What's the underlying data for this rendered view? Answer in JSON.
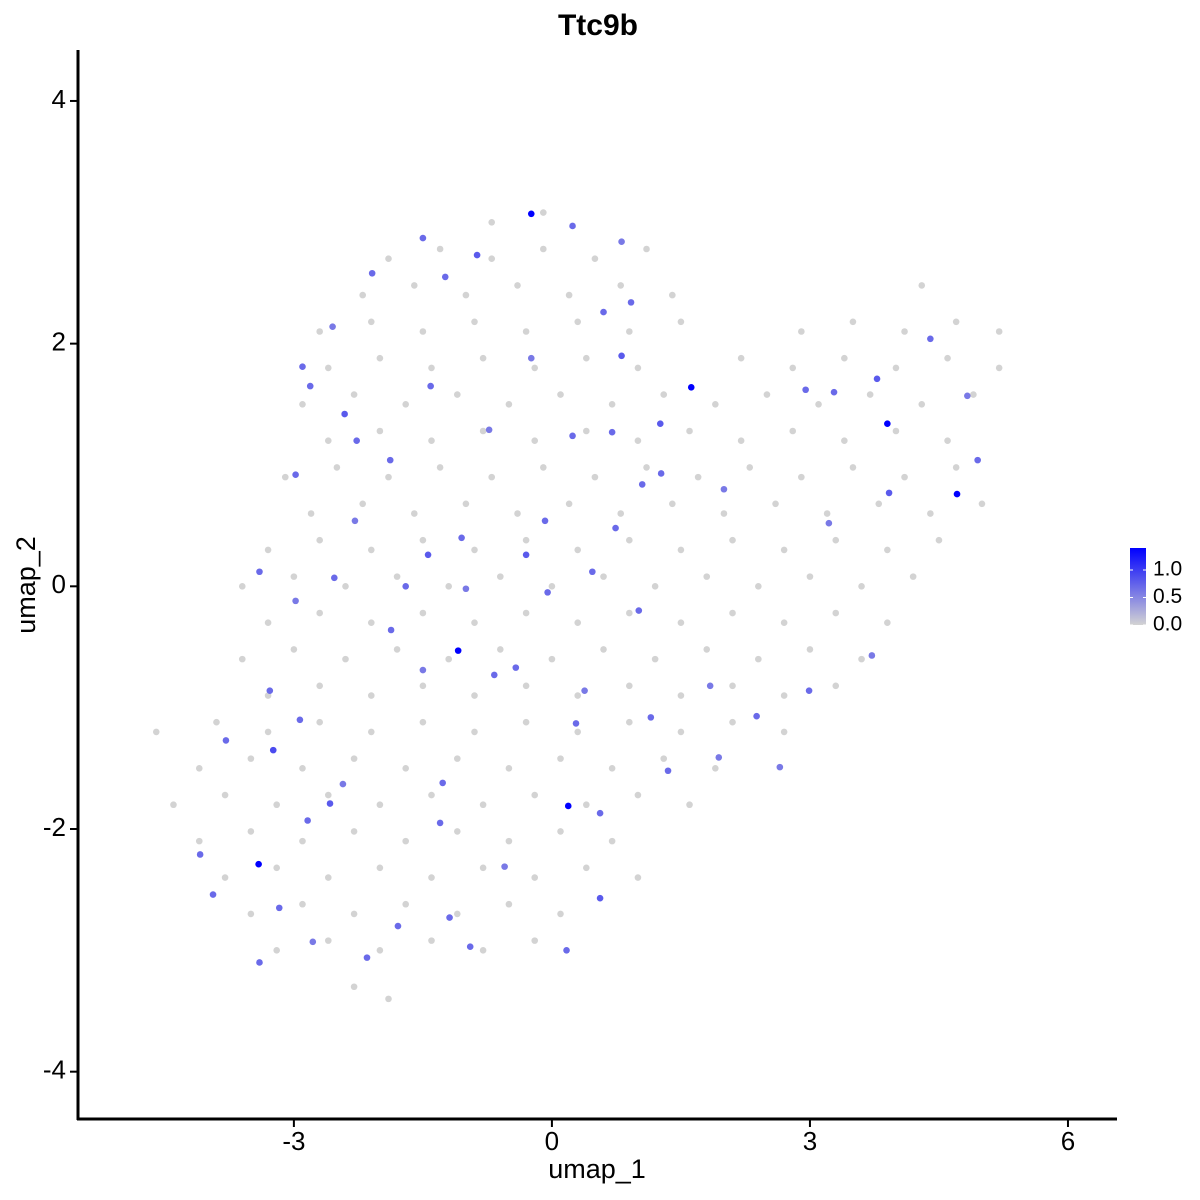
{
  "chart_data": {
    "type": "scatter",
    "title": "Ttc9b",
    "x_label": "umap_1",
    "y_label": "umap_2",
    "xlim": [
      -5.51,
      6.57
    ],
    "ylim": [
      -4.39,
      4.42
    ],
    "xticks": [
      -3,
      0,
      3,
      6
    ],
    "yticks": [
      -4,
      -2,
      0,
      2,
      4
    ],
    "colorbar": {
      "low": "#d3d3d3",
      "high": "#0000ff",
      "lim": [
        0,
        1.4
      ],
      "ticks": [
        {
          "value": 0,
          "label": "0.0"
        },
        {
          "value": 0.5,
          "label": "0.5"
        },
        {
          "value": 1,
          "label": "1.0"
        }
      ]
    },
    "x": [
      -0.7,
      -0.1,
      -1.9,
      -1.3,
      -0.7,
      -0.1,
      0.5,
      1.1,
      -2.2,
      -1.6,
      -1.0,
      -0.4,
      0.2,
      0.8,
      1.4,
      4.3,
      -2.7,
      -2.1,
      -1.5,
      -0.9,
      -0.3,
      0.3,
      0.9,
      1.5,
      2.9,
      3.5,
      4.1,
      4.7,
      5.2,
      -2.6,
      -2.0,
      -1.4,
      -0.8,
      -0.2,
      0.4,
      1.0,
      2.2,
      2.8,
      3.4,
      4.0,
      4.6,
      5.2,
      -2.9,
      -2.3,
      -1.7,
      -1.1,
      -0.5,
      0.1,
      0.7,
      1.3,
      1.9,
      2.5,
      3.1,
      3.7,
      4.3,
      4.9,
      -2.6,
      -2.0,
      -1.4,
      -0.8,
      -0.2,
      0.4,
      1.0,
      1.6,
      2.2,
      2.8,
      3.4,
      4.0,
      4.6,
      -3.1,
      -2.5,
      -1.9,
      -1.3,
      -0.7,
      -0.1,
      0.5,
      1.1,
      1.7,
      2.3,
      2.9,
      3.5,
      4.1,
      4.7,
      -2.8,
      -2.2,
      -1.6,
      -1.0,
      -0.4,
      0.2,
      0.8,
      1.4,
      2.0,
      2.6,
      3.2,
      3.8,
      4.4,
      5.0,
      -3.3,
      -2.7,
      -2.1,
      -1.5,
      -0.9,
      -0.3,
      0.3,
      0.9,
      1.5,
      2.1,
      2.7,
      3.3,
      3.9,
      4.5,
      -3.6,
      -3.0,
      -2.4,
      -1.8,
      -1.2,
      -0.6,
      0.0,
      0.6,
      1.2,
      1.8,
      2.4,
      3.0,
      3.6,
      4.2,
      -3.3,
      -2.7,
      -2.1,
      -1.5,
      -0.9,
      -0.3,
      0.3,
      0.9,
      1.5,
      2.1,
      2.7,
      3.3,
      3.9,
      -3.6,
      -3.0,
      -2.4,
      -1.8,
      -1.2,
      -0.6,
      0.0,
      0.6,
      1.2,
      1.8,
      2.4,
      3.0,
      3.6,
      -3.3,
      -2.7,
      -2.1,
      -1.5,
      -0.9,
      -0.3,
      0.3,
      0.9,
      1.5,
      2.1,
      2.7,
      3.3,
      -4.6,
      -3.9,
      -3.3,
      -2.7,
      -2.1,
      -1.5,
      -0.9,
      -0.3,
      0.3,
      0.9,
      1.5,
      2.1,
      2.7,
      -4.1,
      -3.5,
      -2.9,
      -2.3,
      -1.7,
      -1.1,
      -0.5,
      0.1,
      0.7,
      1.3,
      1.9,
      -4.4,
      -3.8,
      -3.2,
      -2.6,
      -2.0,
      -1.4,
      -0.8,
      -0.2,
      0.4,
      1.0,
      1.6,
      -4.1,
      -3.5,
      -2.9,
      -2.3,
      -1.7,
      -1.1,
      -0.5,
      0.1,
      0.7,
      -3.8,
      -3.2,
      -2.6,
      -2.0,
      -1.4,
      -0.8,
      -0.2,
      0.4,
      1.0,
      -3.5,
      -2.9,
      -2.3,
      -1.7,
      -1.1,
      -0.5,
      0.1,
      -3.2,
      -2.6,
      -2.0,
      -1.4,
      -0.8,
      -0.2,
      -2.3,
      -1.9,
      -0.24,
      1.62,
      3.9,
      4.71,
      -1.09,
      0.19,
      -3.41,
      -1.5,
      -0.87,
      0.24,
      0.81,
      0.92,
      0.6,
      0.81,
      -2.9,
      -2.55,
      -2.41,
      -1.88,
      -1.41,
      -0.24,
      0.24,
      0.7,
      1.26,
      1.27,
      2.0,
      2.95,
      3.28,
      3.78,
      4.4,
      4.83,
      4.95,
      3.92,
      3.22,
      0.74,
      -0.08,
      -0.3,
      -1.05,
      -1.0,
      1.01,
      -0.05,
      -1.44,
      -1.7,
      -2.98,
      -3.4,
      -3.28,
      -2.93,
      -3.24,
      -2.58,
      -2.84,
      -2.43,
      -4.09,
      -3.79,
      -3.94,
      -3.17,
      -3.4,
      -2.78,
      -2.15,
      -1.79,
      -1.19,
      -0.95,
      -0.55,
      0.17,
      0.56,
      0.56,
      0.38,
      0.28,
      -1.27,
      -1.3,
      -1.5,
      -0.42,
      -0.67,
      1.15,
      1.84,
      2.38,
      2.65,
      2.99,
      3.72,
      1.94,
      1.35,
      -1.87,
      -2.53,
      -2.27,
      -2.29,
      -2.98,
      -2.81,
      -2.09,
      -1.24,
      -0.73,
      1.05,
      0.47
    ],
    "y": [
      3.0,
      3.08,
      2.7,
      2.78,
      2.7,
      2.78,
      2.7,
      2.78,
      2.4,
      2.48,
      2.4,
      2.48,
      2.4,
      2.48,
      2.4,
      2.48,
      2.1,
      2.18,
      2.1,
      2.18,
      2.1,
      2.18,
      2.1,
      2.18,
      2.1,
      2.18,
      2.1,
      2.18,
      2.1,
      1.8,
      1.88,
      1.8,
      1.88,
      1.8,
      1.88,
      1.8,
      1.88,
      1.8,
      1.88,
      1.8,
      1.88,
      1.8,
      1.5,
      1.58,
      1.5,
      1.58,
      1.5,
      1.58,
      1.5,
      1.58,
      1.5,
      1.58,
      1.5,
      1.58,
      1.5,
      1.58,
      1.2,
      1.28,
      1.2,
      1.28,
      1.2,
      1.28,
      1.2,
      1.28,
      1.2,
      1.28,
      1.2,
      1.28,
      1.2,
      0.9,
      0.98,
      0.9,
      0.98,
      0.9,
      0.98,
      0.9,
      0.98,
      0.9,
      0.98,
      0.9,
      0.98,
      0.9,
      0.98,
      0.6,
      0.68,
      0.6,
      0.68,
      0.6,
      0.68,
      0.6,
      0.68,
      0.6,
      0.68,
      0.6,
      0.68,
      0.6,
      0.68,
      0.3,
      0.38,
      0.3,
      0.38,
      0.3,
      0.38,
      0.3,
      0.38,
      0.3,
      0.38,
      0.3,
      0.38,
      0.3,
      0.38,
      0.0,
      0.08,
      0.0,
      0.08,
      0.0,
      0.08,
      0.0,
      0.08,
      0.0,
      0.08,
      0.0,
      0.08,
      0.0,
      0.08,
      -0.3,
      -0.22,
      -0.3,
      -0.22,
      -0.3,
      -0.22,
      -0.3,
      -0.22,
      -0.3,
      -0.22,
      -0.3,
      -0.22,
      -0.3,
      -0.6,
      -0.52,
      -0.6,
      -0.52,
      -0.6,
      -0.52,
      -0.6,
      -0.52,
      -0.6,
      -0.52,
      -0.6,
      -0.52,
      -0.6,
      -0.9,
      -0.82,
      -0.9,
      -0.82,
      -0.9,
      -0.82,
      -0.9,
      -0.82,
      -0.9,
      -0.82,
      -0.9,
      -0.82,
      -1.2,
      -1.12,
      -1.2,
      -1.12,
      -1.2,
      -1.12,
      -1.2,
      -1.12,
      -1.2,
      -1.12,
      -1.2,
      -1.12,
      -1.2,
      -1.5,
      -1.42,
      -1.5,
      -1.42,
      -1.5,
      -1.42,
      -1.5,
      -1.42,
      -1.5,
      -1.42,
      -1.5,
      -1.8,
      -1.72,
      -1.8,
      -1.72,
      -1.8,
      -1.72,
      -1.8,
      -1.72,
      -1.8,
      -1.72,
      -1.8,
      -2.1,
      -2.02,
      -2.1,
      -2.02,
      -2.1,
      -2.02,
      -2.1,
      -2.02,
      -2.1,
      -2.4,
      -2.32,
      -2.4,
      -2.32,
      -2.4,
      -2.32,
      -2.4,
      -2.32,
      -2.4,
      -2.7,
      -2.62,
      -2.7,
      -2.62,
      -2.7,
      -2.62,
      -2.7,
      -3.0,
      -2.92,
      -3.0,
      -2.92,
      -3.0,
      -2.92,
      -3.3,
      -3.4,
      3.07,
      1.64,
      1.34,
      0.76,
      -0.53,
      -1.81,
      -2.29,
      2.87,
      2.73,
      2.97,
      2.84,
      2.34,
      2.26,
      1.9,
      1.81,
      2.14,
      1.42,
      1.04,
      1.65,
      1.88,
      1.24,
      1.27,
      1.34,
      0.93,
      0.8,
      1.62,
      1.6,
      1.71,
      2.04,
      1.57,
      1.04,
      0.77,
      0.52,
      0.48,
      0.54,
      0.26,
      0.4,
      -0.02,
      -0.2,
      -0.05,
      0.26,
      0,
      -0.12,
      0.12,
      -0.86,
      -1.1,
      -1.35,
      -1.79,
      -1.93,
      -1.63,
      -2.21,
      -1.27,
      -2.54,
      -2.65,
      -3.1,
      -2.93,
      -3.06,
      -2.8,
      -2.73,
      -2.97,
      -2.31,
      -3.0,
      -2.57,
      -1.87,
      -0.86,
      -1.13,
      -1.62,
      -1.95,
      -0.69,
      -0.67,
      -0.73,
      -1.08,
      -0.82,
      -1.07,
      -1.49,
      -0.86,
      -0.57,
      -1.41,
      -1.52,
      -0.36,
      0.07,
      1.2,
      0.54,
      0.92,
      1.65,
      2.58,
      2.55,
      1.29,
      0.84,
      0.12
    ],
    "values": [
      0,
      0,
      0,
      0,
      0,
      0,
      0,
      0,
      0,
      0,
      0,
      0,
      0,
      0,
      0,
      0,
      0,
      0,
      0,
      0,
      0,
      0,
      0,
      0,
      0,
      0,
      0,
      0,
      0,
      0,
      0,
      0,
      0,
      0,
      0,
      0,
      0,
      0,
      0,
      0,
      0,
      0,
      0,
      0,
      0,
      0,
      0,
      0,
      0,
      0,
      0,
      0,
      0,
      0,
      0,
      0,
      0,
      0,
      0,
      0,
      0,
      0,
      0,
      0,
      0,
      0,
      0,
      0,
      0,
      0,
      0,
      0,
      0,
      0,
      0,
      0,
      0,
      0,
      0,
      0,
      0,
      0,
      0,
      0,
      0,
      0,
      0,
      0,
      0,
      0,
      0,
      0,
      0,
      0,
      0,
      0,
      0,
      0,
      0,
      0,
      0,
      0,
      0,
      0,
      0,
      0,
      0,
      0,
      0,
      0,
      0,
      0,
      0,
      0,
      0,
      0,
      0,
      0,
      0,
      0,
      0,
      0,
      0,
      0,
      0,
      0,
      0,
      0,
      0,
      0,
      0,
      0,
      0,
      0,
      0,
      0,
      0,
      0,
      0,
      0,
      0,
      0,
      0,
      0,
      0,
      0,
      0,
      0,
      0,
      0,
      0,
      0,
      0,
      0,
      0,
      0,
      0,
      0,
      0,
      0,
      0,
      0,
      0,
      0,
      0,
      0,
      0,
      0,
      0,
      0,
      0,
      0,
      0,
      0,
      0,
      0,
      0,
      0,
      0,
      0,
      0,
      0,
      0,
      0,
      0,
      0,
      0,
      0,
      0,
      0,
      0,
      0,
      0,
      0,
      0,
      0,
      0,
      0,
      0,
      0,
      0,
      0,
      0,
      0,
      0,
      0,
      0,
      0,
      0,
      0,
      0,
      0,
      0,
      0,
      0,
      0,
      0,
      0,
      0,
      0,
      0,
      0,
      0,
      0,
      0,
      0,
      0,
      0,
      0,
      0,
      0,
      1.4,
      1.4,
      1.4,
      1.4,
      1.4,
      1.4,
      1.4,
      0.7,
      0.8,
      0.7,
      0.6,
      0.7,
      0.7,
      0.8,
      0.7,
      0.6,
      0.8,
      0.7,
      0.7,
      0.6,
      0.7,
      0.7,
      0.8,
      0.7,
      0.6,
      0.7,
      0.7,
      0.8,
      0.7,
      0.6,
      0.7,
      0.8,
      0.6,
      0.7,
      0.7,
      0.8,
      0.7,
      0.6,
      0.7,
      0.7,
      0.8,
      0.7,
      0.6,
      0.7,
      0.7,
      0.7,
      0.9,
      0.8,
      0.7,
      0.6,
      0.7,
      0.7,
      0.7,
      0.7,
      0.7,
      0.6,
      0.7,
      0.7,
      0.7,
      0.7,
      0.6,
      0.7,
      0.8,
      0.7,
      0.6,
      0.7,
      0.7,
      0.7,
      0.6,
      0.7,
      0.7,
      0.7,
      0.6,
      0.7,
      0.6,
      0.7,
      0.6,
      0.6,
      0.7,
      0.7,
      0.7,
      0.7,
      0.6,
      0.7,
      0.7,
      0.7,
      0.7,
      0.6,
      0.7,
      0.7
    ]
  }
}
